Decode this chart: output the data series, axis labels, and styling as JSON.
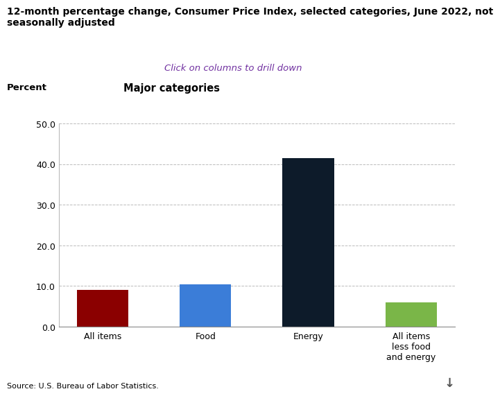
{
  "title": "12-month percentage change, Consumer Price Index, selected categories, June 2022, not\nseasonally adjusted",
  "subtitle": "Click on columns to drill down",
  "subtitle_color": "#7030A0",
  "ylabel": "Percent",
  "xlabel_top": "Major categories",
  "categories": [
    "All items",
    "Food",
    "Energy",
    "All items\nless food\nand energy"
  ],
  "values": [
    9.1,
    10.4,
    41.5,
    5.9
  ],
  "bar_colors": [
    "#8B0000",
    "#3B7DD8",
    "#0D1B2A",
    "#7AB648"
  ],
  "ylim": [
    0,
    50
  ],
  "yticks": [
    0.0,
    10.0,
    20.0,
    30.0,
    40.0,
    50.0
  ],
  "ytick_labels": [
    "0.0",
    "10.0",
    "20.0",
    "30.0",
    "40.0",
    "50.0"
  ],
  "grid_color": "#BBBBBB",
  "grid_linestyle": "--",
  "background_color": "#FFFFFF",
  "source_text": "Source: U.S. Bureau of Labor Statistics.",
  "title_fontsize": 10,
  "subtitle_fontsize": 9.5,
  "ylabel_fontsize": 9.5,
  "xlabel_top_fontsize": 10.5,
  "tick_fontsize": 9,
  "source_fontsize": 8,
  "bar_width": 0.5
}
